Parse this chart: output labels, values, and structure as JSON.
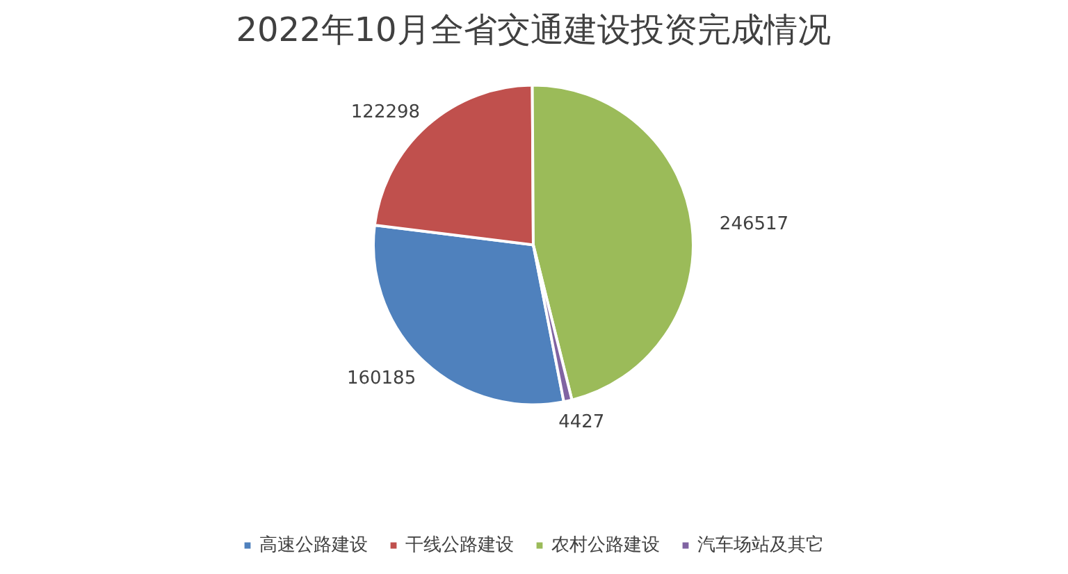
{
  "chart_data": {
    "type": "pie",
    "title": "2022年10月全省交通建设投资完成情况",
    "categories": [
      "高速公路建设",
      "干线公路建设",
      "农村公路建设",
      "汽车场站及其它"
    ],
    "values": [
      160185,
      122298,
      246517,
      4427
    ],
    "colors": [
      "#4f81bd",
      "#c0504d",
      "#9bbb59",
      "#8064a2"
    ],
    "data_labels": true,
    "legend": "bottom"
  }
}
